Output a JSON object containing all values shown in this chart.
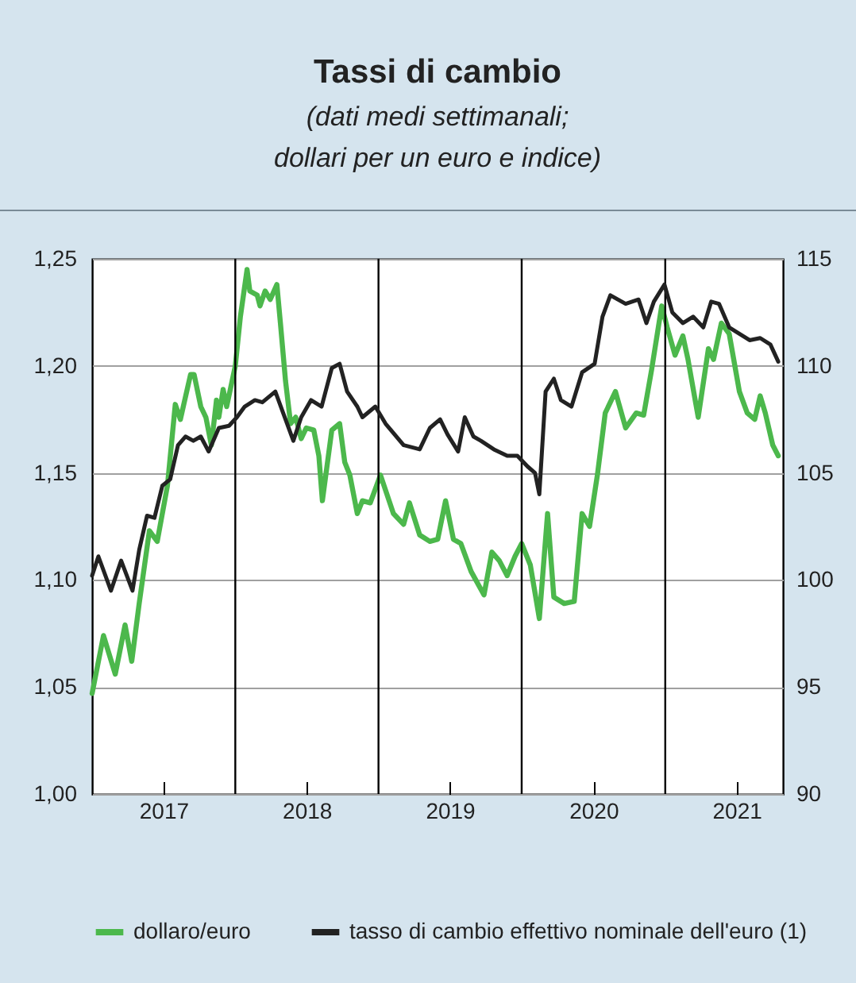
{
  "chart_data": {
    "type": "line",
    "title": "Tassi di cambio",
    "subtitle": "(dati medi settimanali; dollari per un euro e indice)",
    "xlim": [
      "2017-01-01",
      "2021-10-28"
    ],
    "xticks": [
      {
        "value": "2017-07-02",
        "label": "2017"
      },
      {
        "value": "2018-07-02",
        "label": "2018"
      },
      {
        "value": "2019-07-02",
        "label": "2019"
      },
      {
        "value": "2020-07-02",
        "label": "2020"
      },
      {
        "value": "2021-07-02",
        "label": "2021"
      }
    ],
    "ylim": [
      1.0,
      1.25
    ],
    "yticks": [
      {
        "value": 1.0,
        "label": "1,00"
      },
      {
        "value": 1.05,
        "label": "1,05"
      },
      {
        "value": 1.1,
        "label": "1,10"
      },
      {
        "value": 1.15,
        "label": "1,15"
      },
      {
        "value": 1.2,
        "label": "1,20"
      },
      {
        "value": 1.25,
        "label": "1,25"
      }
    ],
    "y2lim": [
      90,
      115
    ],
    "y2ticks": [
      90,
      95,
      100,
      105,
      110,
      115
    ],
    "grid": "y",
    "legend": "bottom",
    "ref_lines": [
      {
        "axis": "x",
        "value": "2018-01-01",
        "color": "#000000"
      },
      {
        "axis": "x",
        "value": "2019-01-01",
        "color": "#000000"
      },
      {
        "axis": "x",
        "value": "2020-01-01",
        "color": "#000000"
      },
      {
        "axis": "x",
        "value": "2021-01-01",
        "color": "#000000"
      }
    ],
    "series": [
      {
        "name": "dollaro/euro",
        "color": "#4cb84c",
        "x": [
          "2017-01-01",
          "2017-01-30",
          "2017-03-01",
          "2017-03-26",
          "2017-04-12",
          "2017-05-01",
          "2017-05-27",
          "2017-06-16",
          "2017-07-12",
          "2017-08-01",
          "2017-08-14",
          "2017-09-09",
          "2017-09-18",
          "2017-10-05",
          "2017-10-18",
          "2017-11-01",
          "2017-11-14",
          "2017-11-20",
          "2017-12-01",
          "2017-12-10",
          "2018-01-01",
          "2018-01-14",
          "2018-01-31",
          "2018-02-07",
          "2018-02-26",
          "2018-03-05",
          "2018-03-18",
          "2018-03-31",
          "2018-04-17",
          "2018-04-26",
          "2018-05-09",
          "2018-05-22",
          "2018-06-04",
          "2018-06-18",
          "2018-07-01",
          "2018-07-20",
          "2018-08-02",
          "2018-08-11",
          "2018-09-04",
          "2018-09-24",
          "2018-10-07",
          "2018-10-20",
          "2018-11-08",
          "2018-11-21",
          "2018-12-11",
          "2019-01-06",
          "2019-02-08",
          "2019-03-06",
          "2019-03-21",
          "2019-04-16",
          "2019-05-12",
          "2019-06-01",
          "2019-06-21",
          "2019-07-11",
          "2019-07-30",
          "2019-08-25",
          "2019-09-27",
          "2019-10-17",
          "2019-11-05",
          "2019-11-25",
          "2019-12-15",
          "2020-01-01",
          "2020-01-23",
          "2020-02-15",
          "2020-03-07",
          "2020-03-23",
          "2020-04-18",
          "2020-05-14",
          "2020-06-03",
          "2020-06-22",
          "2020-07-12",
          "2020-08-01",
          "2020-08-27",
          "2020-09-22",
          "2020-10-19",
          "2020-11-07",
          "2020-11-27",
          "2020-12-23",
          "2021-01-06",
          "2021-01-26",
          "2021-02-15",
          "2021-02-28",
          "2021-03-26",
          "2021-04-21",
          "2021-05-04",
          "2021-05-24",
          "2021-06-13",
          "2021-07-09",
          "2021-07-29",
          "2021-08-17",
          "2021-08-31",
          "2021-09-13",
          "2021-10-02",
          "2021-10-16"
        ],
        "values": [
          1.047,
          1.074,
          1.056,
          1.079,
          1.062,
          1.089,
          1.123,
          1.118,
          1.144,
          1.182,
          1.175,
          1.196,
          1.196,
          1.181,
          1.176,
          1.163,
          1.184,
          1.176,
          1.189,
          1.181,
          1.2,
          1.223,
          1.245,
          1.235,
          1.233,
          1.228,
          1.235,
          1.231,
          1.238,
          1.22,
          1.193,
          1.173,
          1.176,
          1.166,
          1.171,
          1.17,
          1.158,
          1.137,
          1.17,
          1.173,
          1.155,
          1.149,
          1.131,
          1.137,
          1.136,
          1.149,
          1.131,
          1.126,
          1.136,
          1.121,
          1.118,
          1.119,
          1.137,
          1.119,
          1.117,
          1.104,
          1.093,
          1.113,
          1.109,
          1.102,
          1.111,
          1.117,
          1.107,
          1.082,
          1.131,
          1.092,
          1.089,
          1.09,
          1.131,
          1.125,
          1.149,
          1.178,
          1.188,
          1.171,
          1.178,
          1.177,
          1.198,
          1.228,
          1.218,
          1.205,
          1.214,
          1.203,
          1.176,
          1.208,
          1.203,
          1.22,
          1.215,
          1.188,
          1.178,
          1.175,
          1.186,
          1.178,
          1.163,
          1.158
        ]
      },
      {
        "name": "tasso di cambio effettivo nominale dell'euro (1)",
        "color": "#222222",
        "axis": "y2",
        "x": [
          "2017-01-01",
          "2017-01-17",
          "2017-02-18",
          "2017-03-16",
          "2017-04-14",
          "2017-05-01",
          "2017-05-21",
          "2017-06-09",
          "2017-06-29",
          "2017-07-19",
          "2017-08-08",
          "2017-08-27",
          "2017-09-16",
          "2017-10-05",
          "2017-10-25",
          "2017-11-20",
          "2017-12-16",
          "2018-01-05",
          "2018-01-25",
          "2018-02-20",
          "2018-03-11",
          "2018-04-13",
          "2018-05-03",
          "2018-05-29",
          "2018-06-18",
          "2018-07-13",
          "2018-08-09",
          "2018-09-04",
          "2018-09-24",
          "2018-10-13",
          "2018-11-08",
          "2018-11-21",
          "2018-12-24",
          "2019-01-19",
          "2019-03-06",
          "2019-04-16",
          "2019-05-12",
          "2019-06-07",
          "2019-06-26",
          "2019-07-23",
          "2019-08-09",
          "2019-08-31",
          "2019-09-19",
          "2019-10-22",
          "2019-11-25",
          "2019-12-21",
          "2020-01-16",
          "2020-02-04",
          "2020-02-15",
          "2020-03-02",
          "2020-03-23",
          "2020-04-10",
          "2020-05-07",
          "2020-06-03",
          "2020-07-05",
          "2020-07-25",
          "2020-08-14",
          "2020-09-22",
          "2020-10-25",
          "2020-11-14",
          "2020-12-03",
          "2020-12-30",
          "2021-01-19",
          "2021-02-15",
          "2021-03-13",
          "2021-04-08",
          "2021-04-28",
          "2021-05-18",
          "2021-06-13",
          "2021-07-09",
          "2021-08-04",
          "2021-08-31",
          "2021-09-26",
          "2021-10-16"
        ],
        "values": [
          100.2,
          101.1,
          99.5,
          100.9,
          99.5,
          101.4,
          103.0,
          102.9,
          104.4,
          104.7,
          106.3,
          106.7,
          106.5,
          106.7,
          106.0,
          107.1,
          107.2,
          107.6,
          108.1,
          108.4,
          108.3,
          108.8,
          107.8,
          106.5,
          107.6,
          108.4,
          108.1,
          109.9,
          110.1,
          108.8,
          108.1,
          107.6,
          108.1,
          107.3,
          106.3,
          106.1,
          107.1,
          107.5,
          106.8,
          106.0,
          107.6,
          106.7,
          106.5,
          106.1,
          105.8,
          105.8,
          105.3,
          105.0,
          104.0,
          108.8,
          109.4,
          108.4,
          108.1,
          109.7,
          110.1,
          112.3,
          113.3,
          112.9,
          113.1,
          112.0,
          113.0,
          113.8,
          112.5,
          112.0,
          112.3,
          111.8,
          113.0,
          112.9,
          111.8,
          111.5,
          111.2,
          111.3,
          111.0,
          110.2
        ]
      }
    ]
  }
}
